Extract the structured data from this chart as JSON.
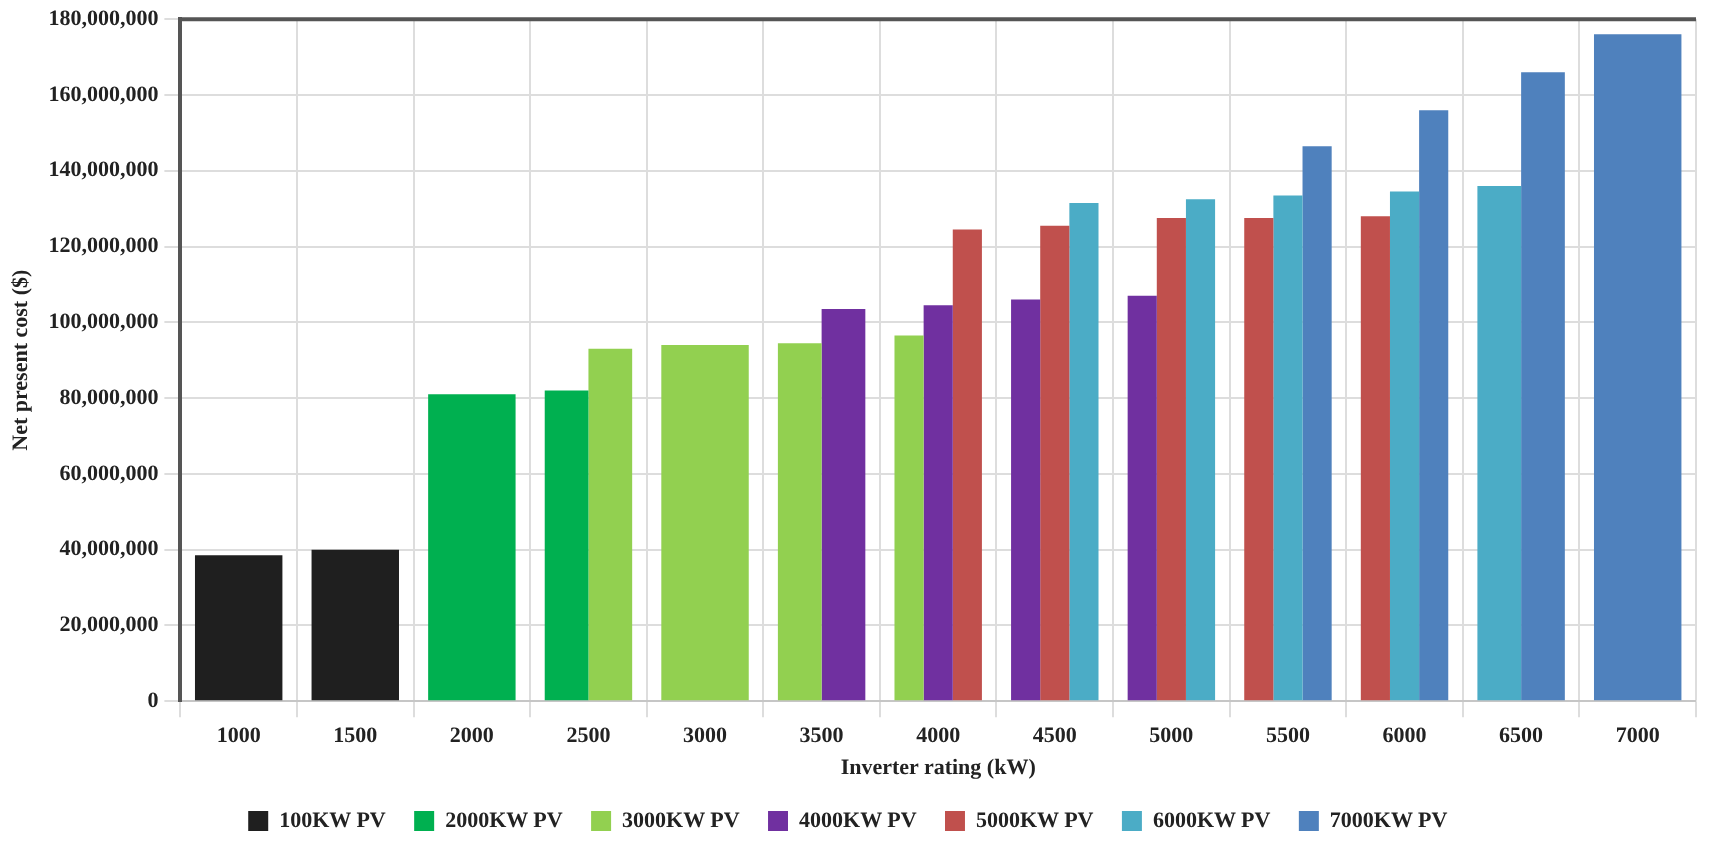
{
  "chart_data": {
    "type": "bar",
    "xlabel": "Inverter rating (kW)",
    "ylabel": "Net present cost ($)",
    "categories": [
      "1000",
      "1500",
      "2000",
      "2500",
      "3000",
      "3500",
      "4000",
      "4500",
      "5000",
      "5500",
      "6000",
      "6500",
      "7000"
    ],
    "series": [
      {
        "name": "100KW PV",
        "color": "#1f1f1f",
        "values": [
          38500000.0,
          40000000.0,
          null,
          null,
          null,
          null,
          null,
          null,
          null,
          null,
          null,
          null,
          null
        ]
      },
      {
        "name": "2000KW PV",
        "color": "#00b050",
        "values": [
          null,
          null,
          81000000.0,
          82000000.0,
          null,
          null,
          null,
          null,
          null,
          null,
          null,
          null,
          null
        ]
      },
      {
        "name": "3000KW PV",
        "color": "#92d050",
        "values": [
          null,
          null,
          null,
          93000000.0,
          94000000.0,
          94500000.0,
          96500000.0,
          null,
          null,
          null,
          null,
          null,
          null
        ]
      },
      {
        "name": "4000KW PV",
        "color": "#7030a0",
        "values": [
          null,
          null,
          null,
          null,
          null,
          103500000.0,
          104500000.0,
          106000000.0,
          107000000.0,
          null,
          null,
          null,
          null
        ]
      },
      {
        "name": "5000KW PV",
        "color": "#c0504d",
        "values": [
          null,
          null,
          null,
          null,
          null,
          null,
          124500000.0,
          125500000.0,
          127500000.0,
          127500000.0,
          128000000.0,
          null,
          null
        ]
      },
      {
        "name": "6000KW PV",
        "color": "#4bacc6",
        "values": [
          null,
          null,
          null,
          null,
          null,
          null,
          null,
          131500000.0,
          132500000.0,
          133500000.0,
          134500000.0,
          136000000.0,
          null
        ]
      },
      {
        "name": "7000KW PV",
        "color": "#4f81bd",
        "values": [
          null,
          null,
          null,
          null,
          null,
          null,
          null,
          null,
          null,
          146500000.0,
          156000000.0,
          166000000.0,
          176000000.0
        ]
      }
    ],
    "ylim": [
      0,
      180000000
    ],
    "yticks": [
      {
        "value": 0,
        "label": "0"
      },
      {
        "value": 20000000,
        "label": "20,000,000"
      },
      {
        "value": 40000000,
        "label": "40,000,000"
      },
      {
        "value": 60000000,
        "label": "60,000,000"
      },
      {
        "value": 80000000,
        "label": "80,000,000"
      },
      {
        "value": 100000000,
        "label": "100,000,000"
      },
      {
        "value": 120000000,
        "label": "120,000,000"
      },
      {
        "value": 140000000,
        "label": "140,000,000"
      },
      {
        "value": 160000000,
        "label": "160,000,000"
      },
      {
        "value": 180000000,
        "label": "180,000,000"
      }
    ],
    "grid": true,
    "legend": "bottom"
  }
}
